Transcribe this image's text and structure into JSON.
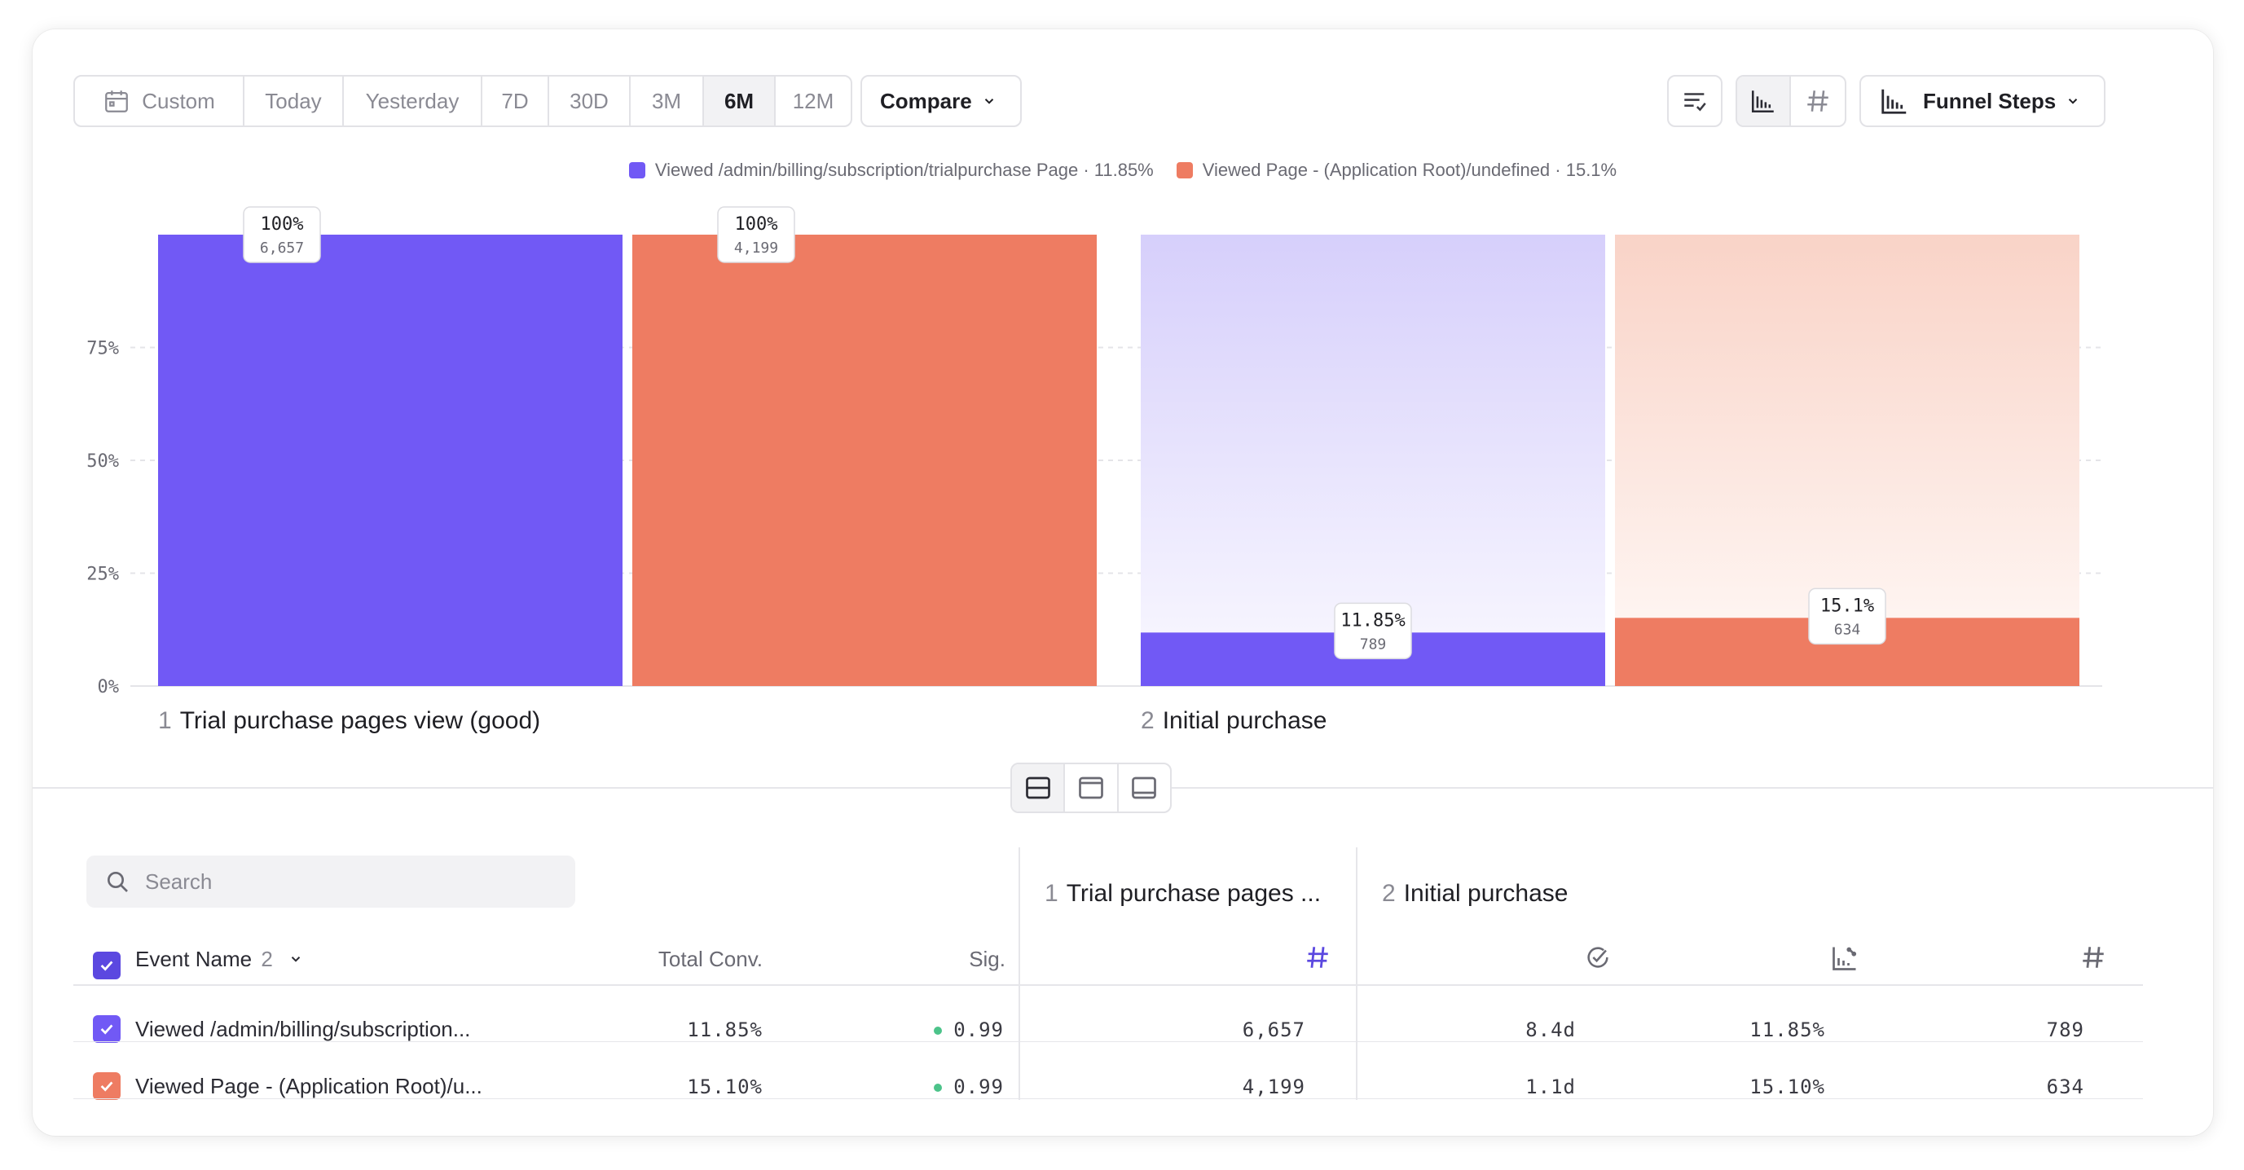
{
  "toolbar": {
    "date_ranges": [
      "Custom",
      "Today",
      "Yesterday",
      "7D",
      "30D",
      "3M",
      "6M",
      "12M"
    ],
    "active_range": "6M",
    "compare_label": "Compare",
    "funnel_label": "Funnel Steps"
  },
  "colors": {
    "purple": "#7159f5",
    "orange": "#ee7c62",
    "purple_light": "#dcd6fb",
    "orange_light": "#fad7cd"
  },
  "legend": [
    {
      "label": "Viewed /admin/billing/subscription/trialpurchase Page · 11.85%",
      "color": "#7159f5"
    },
    {
      "label": "Viewed Page - (Application Root)/undefined · 15.1%",
      "color": "#ee7c62"
    }
  ],
  "chart_data": {
    "type": "bar",
    "categories": [
      "Trial purchase pages view (good)",
      "Initial purchase"
    ],
    "series": [
      {
        "name": "Viewed /admin/billing/subscription/trialpurchase Page",
        "values": [
          100,
          11.85
        ],
        "counts": [
          "6,657",
          "789"
        ],
        "labels": [
          "100%",
          "11.85%"
        ]
      },
      {
        "name": "Viewed Page - (Application Root)/undefined",
        "values": [
          100,
          15.1
        ],
        "counts": [
          "4,199",
          "634"
        ],
        "labels": [
          "100%",
          "15.1%"
        ]
      }
    ],
    "yticks": [
      "0%",
      "25%",
      "50%",
      "75%"
    ],
    "ylim": [
      0,
      100
    ],
    "grid": true
  },
  "steps": [
    {
      "num": "1",
      "label": "Trial purchase pages view (good)"
    },
    {
      "num": "2",
      "label": "Initial purchase"
    }
  ],
  "table": {
    "search_placeholder": "Search",
    "event_name_header": "Event Name",
    "event_count": "2",
    "total_conv_header": "Total Conv.",
    "sig_header": "Sig.",
    "group1": {
      "num": "1",
      "label": "Trial purchase pages ..."
    },
    "group2": {
      "num": "2",
      "label": "Initial purchase"
    },
    "rows": [
      {
        "name": "Viewed /admin/billing/subscription...",
        "total_conv": "11.85%",
        "sig": "0.99",
        "step1_count": "6,657",
        "time": "8.4d",
        "conv": "11.85%",
        "step2_count": "789"
      },
      {
        "name": "Viewed Page - (Application Root)/u...",
        "total_conv": "15.10%",
        "sig": "0.99",
        "step1_count": "4,199",
        "time": "1.1d",
        "conv": "15.10%",
        "step2_count": "634"
      }
    ]
  }
}
